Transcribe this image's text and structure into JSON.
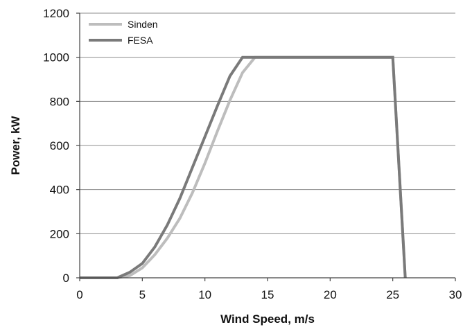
{
  "chart_data": {
    "type": "line",
    "title": "",
    "xlabel": "Wind Speed, m/s",
    "ylabel": "Power, kW",
    "xlim": [
      0,
      30
    ],
    "ylim": [
      0,
      1200
    ],
    "x_ticks": [
      "0",
      "5",
      "10",
      "15",
      "20",
      "25",
      "30"
    ],
    "y_ticks": [
      "0",
      "200",
      "400",
      "600",
      "800",
      "1000",
      "1200"
    ],
    "grid": "horizontal",
    "legend_position": "top-left",
    "series": [
      {
        "name": "Sinden",
        "color": "#bdbdbd",
        "points": [
          [
            0,
            0
          ],
          [
            3,
            0
          ],
          [
            4,
            10
          ],
          [
            5,
            45
          ],
          [
            6,
            105
          ],
          [
            7,
            180
          ],
          [
            8,
            270
          ],
          [
            9,
            385
          ],
          [
            10,
            520
          ],
          [
            11,
            665
          ],
          [
            12,
            805
          ],
          [
            13,
            930
          ],
          [
            14,
            1000
          ],
          [
            25,
            1000
          ],
          [
            26,
            0
          ]
        ]
      },
      {
        "name": "FESA",
        "color": "#7a7a7a",
        "points": [
          [
            0,
            0
          ],
          [
            3,
            0
          ],
          [
            4,
            25
          ],
          [
            5,
            65
          ],
          [
            6,
            140
          ],
          [
            7,
            240
          ],
          [
            8,
            360
          ],
          [
            9,
            500
          ],
          [
            10,
            640
          ],
          [
            11,
            780
          ],
          [
            12,
            915
          ],
          [
            13,
            1000
          ],
          [
            25,
            1000
          ],
          [
            26,
            0
          ]
        ]
      }
    ]
  }
}
